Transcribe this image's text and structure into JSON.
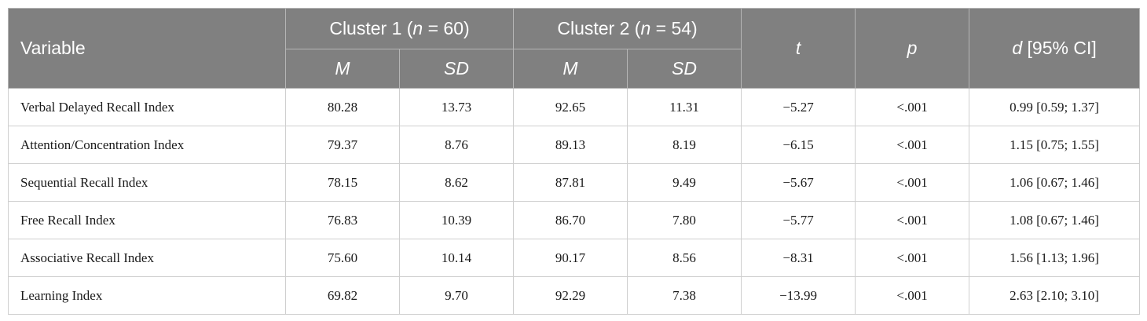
{
  "header": {
    "variable": "Variable",
    "cluster1": {
      "prefix": "Cluster 1 (",
      "n_symbol": "n",
      "suffix": " = 60)"
    },
    "cluster2": {
      "prefix": "Cluster 2 (",
      "n_symbol": "n",
      "suffix": " = 54)"
    },
    "m": "M",
    "sd": "SD",
    "t": "t",
    "p": "p",
    "d": {
      "symbol": "d",
      "suffix": " [95% CI]"
    }
  },
  "rows": [
    {
      "variable": "Verbal Delayed Recall Index",
      "c1_m": "80.28",
      "c1_sd": "13.73",
      "c2_m": "92.65",
      "c2_sd": "11.31",
      "t": "−5.27",
      "p": "<.001",
      "d": "0.99 [0.59; 1.37]"
    },
    {
      "variable": "Attention/Concentration Index",
      "c1_m": "79.37",
      "c1_sd": "8.76",
      "c2_m": "89.13",
      "c2_sd": "8.19",
      "t": "−6.15",
      "p": "<.001",
      "d": "1.15 [0.75; 1.55]"
    },
    {
      "variable": "Sequential Recall Index",
      "c1_m": "78.15",
      "c1_sd": "8.62",
      "c2_m": "87.81",
      "c2_sd": "9.49",
      "t": "−5.67",
      "p": "<.001",
      "d": "1.06 [0.67; 1.46]"
    },
    {
      "variable": "Free Recall Index",
      "c1_m": "76.83",
      "c1_sd": "10.39",
      "c2_m": "86.70",
      "c2_sd": "7.80",
      "t": "−5.77",
      "p": "<.001",
      "d": "1.08 [0.67; 1.46]"
    },
    {
      "variable": "Associative Recall Index",
      "c1_m": "75.60",
      "c1_sd": "10.14",
      "c2_m": "90.17",
      "c2_sd": "8.56",
      "t": "−8.31",
      "p": "<.001",
      "d": "1.56 [1.13; 1.96]"
    },
    {
      "variable": "Learning Index",
      "c1_m": "69.82",
      "c1_sd": "9.70",
      "c2_m": "92.29",
      "c2_sd": "7.38",
      "t": "−13.99",
      "p": "<.001",
      "d": "2.63 [2.10; 3.10]"
    }
  ]
}
